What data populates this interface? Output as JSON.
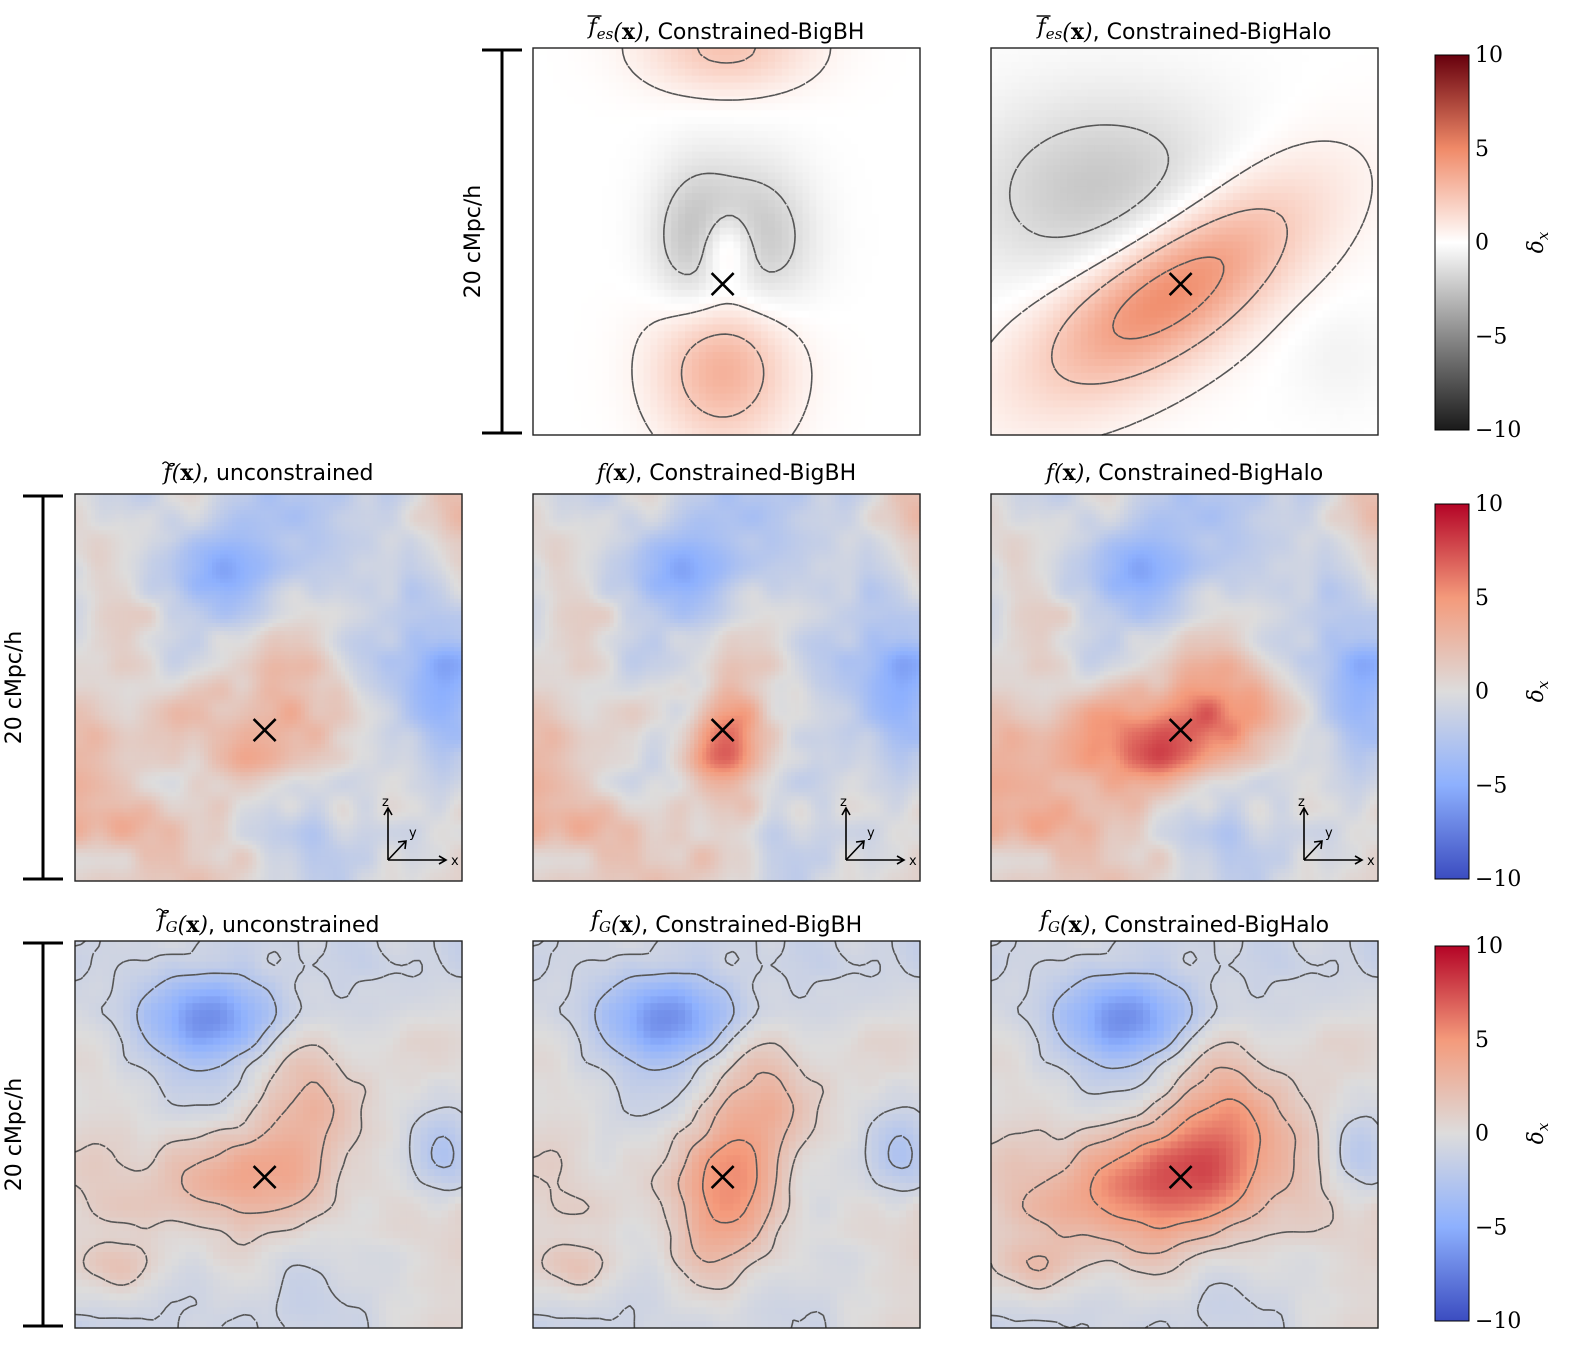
{
  "chart_data": {
    "type": "heatmap",
    "value_label": "δ_x",
    "scale_bar_label": "20 cMpc/h",
    "orientation_axes": [
      "z",
      "y",
      "x"
    ],
    "colorbars": [
      {
        "row": 0,
        "colormap": "Greys-Reds",
        "range": [
          -10,
          10
        ],
        "ticks": [
          "10",
          "5",
          "0",
          "−5",
          "−10"
        ],
        "label": "δ"
      },
      {
        "row": 1,
        "colormap": "coolwarm",
        "range": [
          -10,
          10
        ],
        "ticks": [
          "10",
          "5",
          "0",
          "−5",
          "−10"
        ],
        "label": "δ"
      },
      {
        "row": 2,
        "colormap": "coolwarm",
        "range": [
          -10,
          10
        ],
        "ticks": [
          "10",
          "5",
          "0",
          "−5",
          "−10"
        ],
        "label": "δ"
      }
    ],
    "panels": [
      {
        "id": "p01",
        "row": 0,
        "col": 1,
        "func": "f",
        "accent": "bar",
        "sub": "es",
        "arg": "x",
        "suffix": ", Constrained-BigBH",
        "kind": "es_bigbh",
        "peak_marked": true
      },
      {
        "id": "p02",
        "row": 0,
        "col": 2,
        "func": "f",
        "accent": "bar",
        "sub": "es",
        "arg": "x",
        "suffix": ", Constrained-BigHalo",
        "kind": "es_bighalo",
        "peak_marked": true
      },
      {
        "id": "p10",
        "row": 1,
        "col": 0,
        "func": "f",
        "accent": "tilde",
        "sub": "",
        "arg": "x",
        "suffix": ", unconstrained",
        "kind": "raw_uncon",
        "peak_marked": true
      },
      {
        "id": "p11",
        "row": 1,
        "col": 1,
        "func": "f",
        "accent": "",
        "sub": "",
        "arg": "x",
        "suffix": ", Constrained-BigBH",
        "kind": "raw_bigbh",
        "peak_marked": true
      },
      {
        "id": "p12",
        "row": 1,
        "col": 2,
        "func": "f",
        "accent": "",
        "sub": "",
        "arg": "x",
        "suffix": ", Constrained-BigHalo",
        "kind": "raw_bighalo",
        "peak_marked": true
      },
      {
        "id": "p20",
        "row": 2,
        "col": 0,
        "func": "f",
        "accent": "tilde",
        "sub": "G",
        "arg": "x",
        "suffix": ", unconstrained",
        "kind": "g_uncon",
        "peak_marked": true
      },
      {
        "id": "p21",
        "row": 2,
        "col": 1,
        "func": "f",
        "accent": "",
        "sub": "G",
        "arg": "x",
        "suffix": ", Constrained-BigBH",
        "kind": "g_bigbh",
        "peak_marked": true
      },
      {
        "id": "p22",
        "row": 2,
        "col": 2,
        "func": "f",
        "accent": "",
        "sub": "G",
        "arg": "x",
        "suffix": ", Constrained-BigHalo",
        "kind": "g_bighalo",
        "peak_marked": true
      }
    ]
  }
}
